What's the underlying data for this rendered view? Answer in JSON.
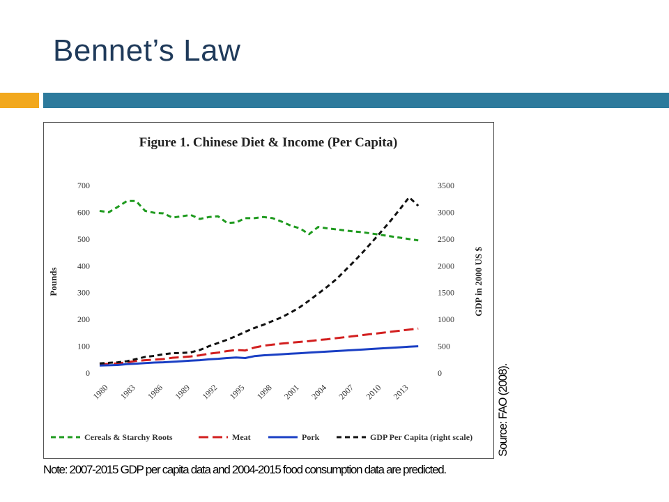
{
  "slide": {
    "title": "Bennet’s Law",
    "accent_colors": {
      "orange": "#f2a81d",
      "blue": "#2d7a9c"
    },
    "source_note": "Source: FAO (2008).",
    "footnote": "Note: 2007-2015 GDP per capita data and 2004-2015 food consumption data are predicted."
  },
  "chart_data": {
    "type": "line",
    "title": "Figure 1. Chinese Diet & Income (Per Capita)",
    "ylabel": "Pounds",
    "y2label": "GDP in 2000 US $",
    "ylim": [
      0,
      700
    ],
    "y2lim": [
      0,
      3500
    ],
    "yticks": [
      "0",
      "100",
      "200",
      "300",
      "400",
      "500",
      "600",
      "700"
    ],
    "y2ticks": [
      "0",
      "500",
      "1000",
      "1500",
      "2000",
      "2500",
      "3000",
      "3500"
    ],
    "xticks": [
      "1980",
      "1983",
      "1986",
      "1989",
      "1992",
      "1995",
      "1998",
      "2001",
      "2004",
      "2007",
      "2010",
      "2013"
    ],
    "x": [
      1980,
      1981,
      1982,
      1983,
      1984,
      1985,
      1986,
      1987,
      1988,
      1989,
      1990,
      1991,
      1992,
      1993,
      1994,
      1995,
      1996,
      1997,
      1998,
      1999,
      2000,
      2001,
      2002,
      2003,
      2004,
      2005,
      2006,
      2007,
      2008,
      2009,
      2010,
      2011,
      2012,
      2013,
      2014,
      2015
    ],
    "legend_position": "bottom",
    "series": [
      {
        "name": "Cereals & Starchy Roots",
        "axis": "left",
        "color": "#1e9a1e",
        "dash": "dash",
        "values": [
          605,
          600,
          620,
          642,
          642,
          605,
          598,
          596,
          580,
          585,
          590,
          575,
          582,
          585,
          560,
          562,
          578,
          578,
          582,
          578,
          565,
          550,
          540,
          518,
          545,
          540,
          536,
          532,
          528,
          525,
          520,
          515,
          510,
          505,
          500,
          495
        ]
      },
      {
        "name": "Meat",
        "axis": "left",
        "color": "#d21f1f",
        "dash": "longdash",
        "values": [
          32,
          34,
          36,
          40,
          45,
          48,
          50,
          52,
          57,
          59,
          62,
          66,
          72,
          76,
          82,
          86,
          84,
          95,
          102,
          106,
          110,
          113,
          116,
          119,
          123,
          126,
          130,
          134,
          138,
          142,
          146,
          150,
          154,
          158,
          162,
          166
        ]
      },
      {
        "name": "Pork",
        "axis": "left",
        "color": "#1a3fc4",
        "dash": "solid",
        "values": [
          28,
          29,
          30,
          33,
          35,
          37,
          39,
          40,
          42,
          44,
          46,
          48,
          51,
          53,
          56,
          58,
          56,
          63,
          66,
          68,
          70,
          72,
          74,
          76,
          78,
          80,
          82,
          84,
          86,
          88,
          90,
          92,
          94,
          96,
          98,
          100
        ]
      },
      {
        "name": "GDP Per Capita (right scale)",
        "axis": "right",
        "color": "#111111",
        "dash": "dash",
        "values": [
          180,
          190,
          200,
          220,
          260,
          300,
          320,
          350,
          370,
          375,
          385,
          430,
          500,
          560,
          620,
          690,
          770,
          840,
          900,
          970,
          1040,
          1130,
          1230,
          1350,
          1480,
          1610,
          1750,
          1920,
          2090,
          2270,
          2460,
          2650,
          2850,
          3060,
          3280,
          3120
        ]
      }
    ]
  }
}
